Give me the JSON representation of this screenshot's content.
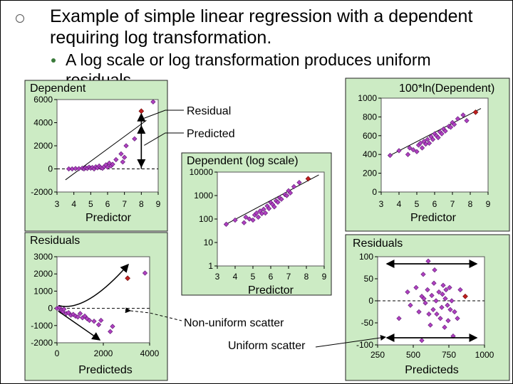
{
  "slide": {
    "bullet1_line1": "Example of simple linear regression with a dependent",
    "bullet1_line2": "requiring log transformation.",
    "bullet2_line1": "A log scale or log transformation produces uniform",
    "bullet2_line2": "residuals"
  },
  "callouts": {
    "residual": "Residual",
    "predicted": "Predicted",
    "non_uniform": "Non-uniform scatter",
    "uniform": "Uniform scatter"
  },
  "colors": {
    "panel_bg": "#ccebc4",
    "point": "#b040c0",
    "point_edge": "#5a1870",
    "highlight": "#c02020"
  },
  "chart_data": [
    {
      "id": "dependent",
      "type": "scatter",
      "title": "Dependent",
      "xlabel": "Predictor",
      "ylabel": "",
      "xlim": [
        3,
        9
      ],
      "ylim": [
        -2000,
        6000
      ],
      "xticks": [
        "3",
        "4",
        "5",
        "6",
        "7",
        "8",
        "9"
      ],
      "yticks": [
        "-2000",
        "0",
        "2000",
        "4000",
        "6000"
      ],
      "fit_line": [
        [
          3.5,
          -950
        ],
        [
          8.3,
          4200
        ]
      ],
      "zero_line": true,
      "points": [
        [
          3.7,
          0
        ],
        [
          3.9,
          0
        ],
        [
          4.1,
          30
        ],
        [
          4.3,
          20
        ],
        [
          4.5,
          60
        ],
        [
          4.6,
          0
        ],
        [
          4.7,
          90
        ],
        [
          4.8,
          40
        ],
        [
          4.9,
          150
        ],
        [
          5.0,
          60
        ],
        [
          5.1,
          120
        ],
        [
          5.2,
          0
        ],
        [
          5.3,
          180
        ],
        [
          5.4,
          90
        ],
        [
          5.5,
          250
        ],
        [
          5.6,
          100
        ],
        [
          5.7,
          50
        ],
        [
          5.8,
          200
        ],
        [
          5.9,
          350
        ],
        [
          6.0,
          150
        ],
        [
          6.1,
          500
        ],
        [
          6.2,
          250
        ],
        [
          6.3,
          400
        ],
        [
          6.5,
          800
        ],
        [
          6.8,
          1300
        ],
        [
          6.9,
          600
        ],
        [
          7.0,
          1000
        ],
        [
          7.1,
          2000
        ],
        [
          7.6,
          2600
        ],
        [
          8.7,
          5800
        ]
      ],
      "highlight_point": [
        8.0,
        5000
      ]
    },
    {
      "id": "log_dependent",
      "type": "scatter",
      "title": "100*ln(Dependent)",
      "xlabel": "Predictor",
      "ylabel": "",
      "xlim": [
        3,
        9
      ],
      "ylim": [
        0,
        1000
      ],
      "xticks": [
        "3",
        "4",
        "5",
        "6",
        "7",
        "8",
        "9"
      ],
      "yticks": [
        "0",
        "200",
        "400",
        "600",
        "800",
        "1000"
      ],
      "fit_line": [
        [
          3.4,
          380
        ],
        [
          8.6,
          890
        ]
      ],
      "zero_line": false,
      "points": [
        [
          3.5,
          390
        ],
        [
          4.0,
          440
        ],
        [
          4.5,
          400
        ],
        [
          4.6,
          470
        ],
        [
          4.8,
          450
        ],
        [
          5.0,
          430
        ],
        [
          5.1,
          500
        ],
        [
          5.2,
          520
        ],
        [
          5.3,
          470
        ],
        [
          5.4,
          540
        ],
        [
          5.5,
          510
        ],
        [
          5.6,
          560
        ],
        [
          5.7,
          520
        ],
        [
          5.8,
          590
        ],
        [
          5.9,
          560
        ],
        [
          6.0,
          620
        ],
        [
          6.1,
          600
        ],
        [
          6.2,
          580
        ],
        [
          6.3,
          640
        ],
        [
          6.4,
          620
        ],
        [
          6.5,
          670
        ],
        [
          6.6,
          650
        ],
        [
          6.8,
          700
        ],
        [
          6.9,
          690
        ],
        [
          7.0,
          740
        ],
        [
          7.1,
          720
        ],
        [
          7.3,
          780
        ],
        [
          7.6,
          820
        ],
        [
          7.8,
          760
        ]
      ],
      "highlight_point": [
        8.3,
        850
      ]
    },
    {
      "id": "log_scale",
      "type": "scatter",
      "title": "Dependent (log scale)",
      "xlabel": "Predictor",
      "ylabel": "",
      "xlim": [
        3,
        9
      ],
      "ylim": [
        1,
        10000
      ],
      "yscale": "log",
      "xticks": [
        "3",
        "4",
        "5",
        "6",
        "7",
        "8",
        "9"
      ],
      "yticks": [
        "1",
        "10",
        "100",
        "1000",
        "10000"
      ],
      "fit_line": [
        [
          3.4,
          55
        ],
        [
          8.7,
          7600
        ]
      ],
      "zero_line": false,
      "points": [
        [
          3.5,
          60
        ],
        [
          4.0,
          90
        ],
        [
          4.5,
          70
        ],
        [
          4.6,
          120
        ],
        [
          4.8,
          100
        ],
        [
          5.0,
          90
        ],
        [
          5.1,
          150
        ],
        [
          5.2,
          180
        ],
        [
          5.3,
          120
        ],
        [
          5.4,
          220
        ],
        [
          5.5,
          170
        ],
        [
          5.6,
          260
        ],
        [
          5.7,
          180
        ],
        [
          5.8,
          360
        ],
        [
          5.9,
          280
        ],
        [
          6.0,
          500
        ],
        [
          6.1,
          420
        ],
        [
          6.2,
          330
        ],
        [
          6.3,
          600
        ],
        [
          6.4,
          520
        ],
        [
          6.5,
          800
        ],
        [
          6.6,
          700
        ],
        [
          6.8,
          1100
        ],
        [
          6.9,
          1000
        ],
        [
          7.0,
          1600
        ],
        [
          7.1,
          1300
        ],
        [
          7.3,
          2400
        ],
        [
          7.6,
          3600
        ]
      ],
      "highlight_point": [
        8.1,
        5200
      ]
    },
    {
      "id": "residuals_raw",
      "type": "scatter",
      "title": "Residuals",
      "xlabel": "Predicteds",
      "ylabel": "",
      "xlim": [
        0,
        4000
      ],
      "ylim": [
        -2000,
        3000
      ],
      "xticks": [
        "0",
        "2000",
        "4000"
      ],
      "yticks": [
        "-2000",
        "-1000",
        "0",
        "1000",
        "2000",
        "3000"
      ],
      "zero_line": true,
      "points": [
        [
          0,
          0
        ],
        [
          100,
          50
        ],
        [
          150,
          -150
        ],
        [
          200,
          -100
        ],
        [
          250,
          -200
        ],
        [
          300,
          -50
        ],
        [
          400,
          -300
        ],
        [
          500,
          -250
        ],
        [
          600,
          -400
        ],
        [
          700,
          -350
        ],
        [
          800,
          -450
        ],
        [
          900,
          -500
        ],
        [
          1000,
          -300
        ],
        [
          1100,
          -550
        ],
        [
          1200,
          -450
        ],
        [
          1300,
          -600
        ],
        [
          1400,
          -700
        ],
        [
          1600,
          -750
        ],
        [
          1800,
          -950
        ],
        [
          1900,
          -700
        ],
        [
          2400,
          -1050
        ],
        [
          2300,
          -1350
        ],
        [
          3800,
          2050
        ]
      ],
      "highlight_point": [
        3050,
        1750
      ]
    },
    {
      "id": "residuals_log",
      "type": "scatter",
      "title": "Residuals",
      "xlabel": "Predicteds",
      "ylabel": "",
      "xlim": [
        250,
        1000
      ],
      "ylim": [
        -100,
        100
      ],
      "xticks": [
        "250",
        "500",
        "750",
        "1000"
      ],
      "yticks": [
        "-100",
        "-50",
        "0",
        "50",
        "100"
      ],
      "zero_line": true,
      "points": [
        [
          400,
          -40
        ],
        [
          460,
          20
        ],
        [
          480,
          -10
        ],
        [
          520,
          30
        ],
        [
          540,
          -25
        ],
        [
          560,
          10
        ],
        [
          570,
          60
        ],
        [
          575,
          5
        ],
        [
          585,
          -5
        ],
        [
          600,
          25
        ],
        [
          610,
          -30
        ],
        [
          620,
          -55
        ],
        [
          630,
          12
        ],
        [
          640,
          -20
        ],
        [
          645,
          40
        ],
        [
          650,
          70
        ],
        [
          660,
          0
        ],
        [
          665,
          -30
        ],
        [
          680,
          20
        ],
        [
          690,
          -40
        ],
        [
          700,
          -15
        ],
        [
          705,
          15
        ],
        [
          710,
          35
        ],
        [
          720,
          -60
        ],
        [
          725,
          5
        ],
        [
          730,
          25
        ],
        [
          740,
          -10
        ],
        [
          745,
          -45
        ],
        [
          755,
          30
        ],
        [
          760,
          -20
        ],
        [
          770,
          0
        ],
        [
          780,
          -80
        ],
        [
          790,
          -25
        ],
        [
          810,
          -40
        ],
        [
          830,
          25
        ],
        [
          560,
          -90
        ],
        [
          605,
          90
        ]
      ],
      "highlight_point": [
        865,
        10
      ]
    }
  ]
}
